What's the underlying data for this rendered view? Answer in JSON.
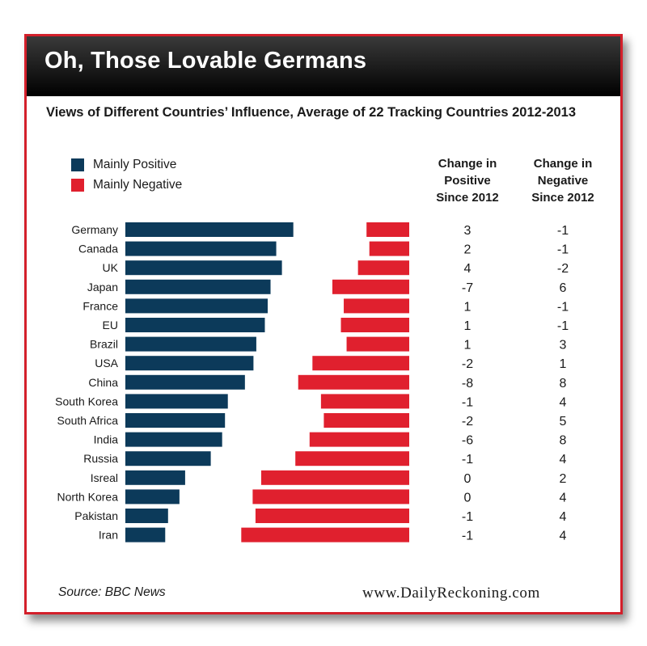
{
  "header": {
    "title": "Oh, Those Lovable Germans"
  },
  "footer": {
    "source": "Source: BBC News",
    "site": "www.DailyReckoning.com"
  },
  "legend": [
    {
      "label": "Mainly Positive",
      "color": "#0c3a5a"
    },
    {
      "label": "Mainly Negative",
      "color": "#e0202e"
    }
  ],
  "table_headers": {
    "positive_change": [
      "Change in",
      "Positive",
      "Since 2012"
    ],
    "negative_change": [
      "Change in",
      "Negative",
      "Since 2012"
    ]
  },
  "chart_data": {
    "type": "bar",
    "title": "Views of Different Countries’ Influence, Average of 22 Tracking Countries 2012-2013",
    "categories": [
      "Germany",
      "Canada",
      "UK",
      "Japan",
      "France",
      "EU",
      "Brazil",
      "USA",
      "China",
      "South Korea",
      "South Africa",
      "India",
      "Russia",
      "Isreal",
      "North Korea",
      "Pakistan",
      "Iran"
    ],
    "series": [
      {
        "name": "Mainly Positive",
        "color": "#0c3a5a",
        "values": [
          59,
          53,
          55,
          51,
          50,
          49,
          46,
          45,
          42,
          36,
          35,
          34,
          30,
          21,
          19,
          15,
          14
        ]
      },
      {
        "name": "Mainly Negative",
        "color": "#e0202e",
        "values": [
          15,
          14,
          18,
          27,
          23,
          24,
          22,
          34,
          39,
          31,
          30,
          35,
          40,
          52,
          55,
          54,
          59
        ]
      }
    ],
    "table_columns": [
      {
        "header": "Change in Positive Since 2012",
        "values": [
          "3",
          "2",
          "4",
          "-7",
          "1",
          "1",
          "1",
          "-2",
          "-8",
          "-1",
          "-2",
          "-6",
          "-1",
          "0",
          "0",
          "-1",
          "-1"
        ]
      },
      {
        "header": "Change in Negative Since 2012",
        "values": [
          "-1",
          "-1",
          "-2",
          "6",
          "-1",
          "-1",
          "3",
          "1",
          "8",
          "4",
          "5",
          "8",
          "4",
          "2",
          "4",
          "4",
          "4"
        ]
      }
    ]
  }
}
